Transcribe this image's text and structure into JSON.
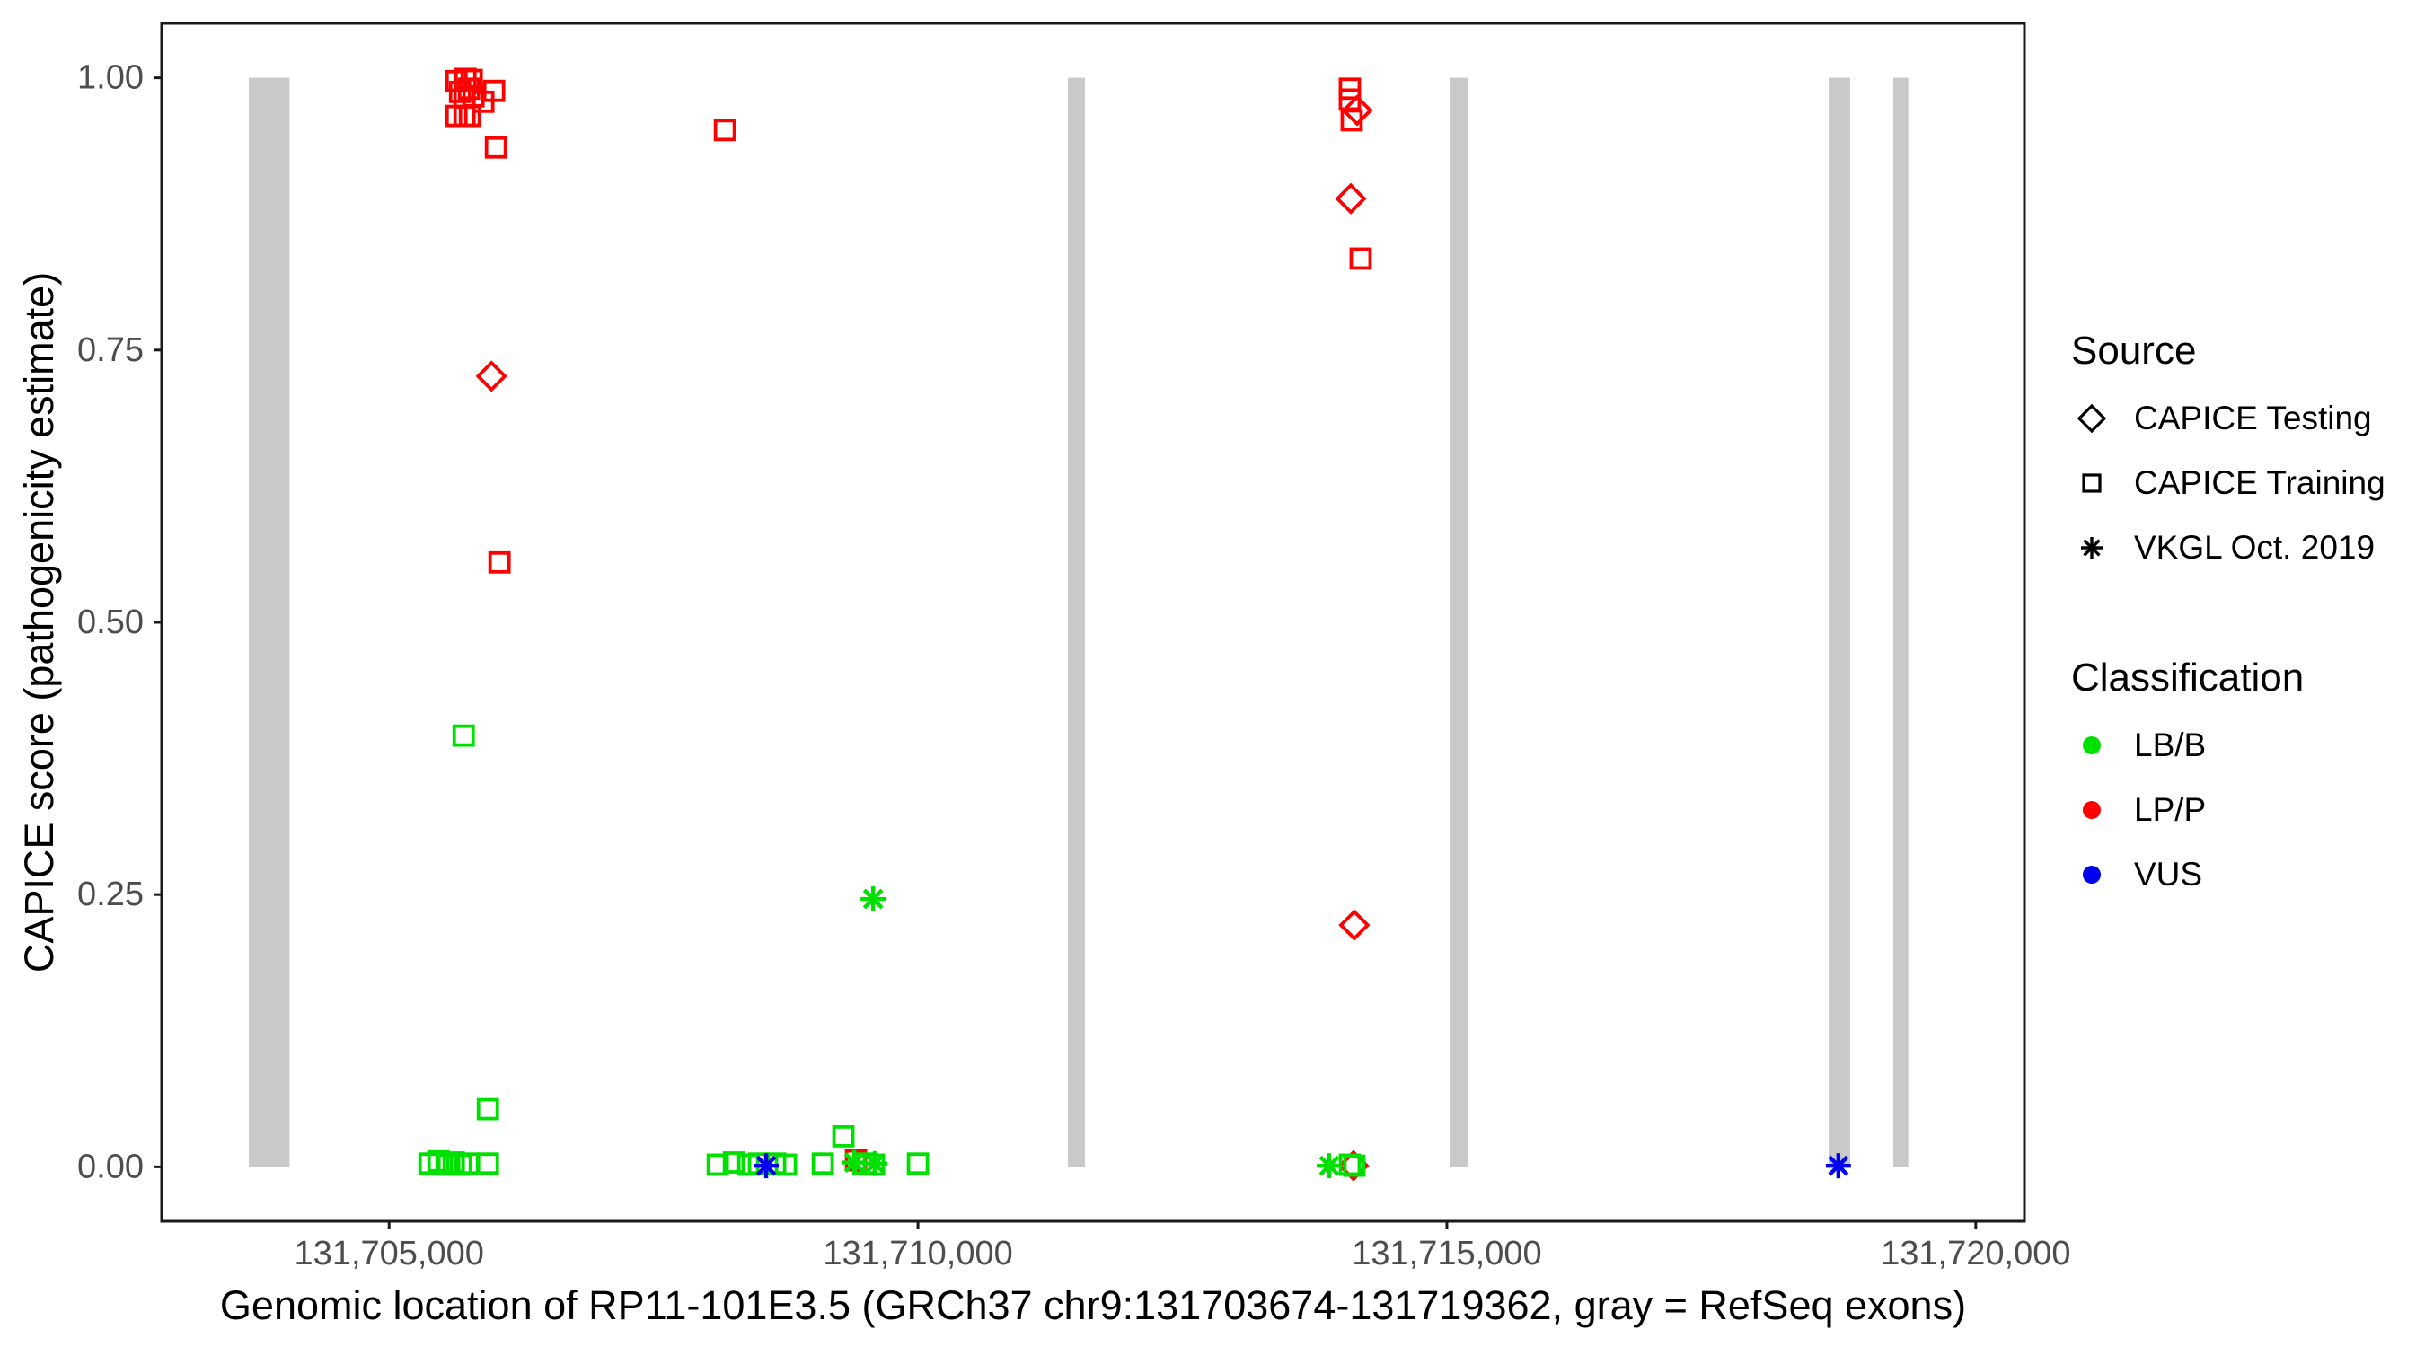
{
  "chart_data": {
    "type": "scatter",
    "title": "",
    "xlabel": "Genomic location of RP11-101E3.5 (GRCh37 chr9:131703674-131719362, gray = RefSeq exons)",
    "ylabel": "CAPICE score (pathogenicity estimate)",
    "xlim": [
      131702850,
      131720460
    ],
    "ylim": [
      -0.05,
      1.05
    ],
    "grid": false,
    "x_ticks": [
      {
        "value": 131705000,
        "label": "131,705,000"
      },
      {
        "value": 131710000,
        "label": "131,710,000"
      },
      {
        "value": 131715000,
        "label": "131,715,000"
      },
      {
        "value": 131720000,
        "label": "131,720,000"
      }
    ],
    "y_ticks": [
      {
        "value": 0.0,
        "label": "0.00"
      },
      {
        "value": 0.25,
        "label": "0.25"
      },
      {
        "value": 0.5,
        "label": "0.50"
      },
      {
        "value": 0.75,
        "label": "0.75"
      },
      {
        "value": 1.0,
        "label": "1.00"
      }
    ],
    "refseq_exons_gray": [
      [
        131703674,
        131704059
      ],
      [
        131711417,
        131711578
      ],
      [
        131715026,
        131715196
      ],
      [
        131718609,
        131718812
      ],
      [
        131719220,
        131719362
      ]
    ],
    "exon_y_span": [
      0.0,
      1.0
    ],
    "series": [
      {
        "name": "CAPICE Training / LP/P",
        "source": "CAPICE Training",
        "classification": "LP/P",
        "marker": "square",
        "color": "#FF0000",
        "points": [
          [
            131705637,
            0.997
          ],
          [
            131705722,
            0.999
          ],
          [
            131705781,
            0.998
          ],
          [
            131705671,
            0.987
          ],
          [
            131705756,
            0.99
          ],
          [
            131705713,
            0.982
          ],
          [
            131705798,
            0.983
          ],
          [
            131705993,
            0.988
          ],
          [
            131705891,
            0.978
          ],
          [
            131705637,
            0.965
          ],
          [
            131705713,
            0.965
          ],
          [
            131705764,
            0.965
          ],
          [
            131706010,
            0.936
          ],
          [
            131706044,
            0.555
          ],
          [
            131708175,
            0.952
          ],
          [
            131709414,
            0.006
          ],
          [
            131714083,
            0.99
          ],
          [
            131714083,
            0.98
          ],
          [
            131714100,
            0.961
          ],
          [
            131714185,
            0.834
          ]
        ]
      },
      {
        "name": "CAPICE Testing / LP/P",
        "source": "CAPICE Testing",
        "classification": "LP/P",
        "marker": "diamond",
        "color": "#FF0000",
        "points": [
          [
            131705968,
            0.726
          ],
          [
            131714151,
            0.97
          ],
          [
            131714092,
            0.889
          ],
          [
            131714125,
            0.222
          ],
          [
            131714117,
            0.001
          ]
        ]
      },
      {
        "name": "CAPICE Training / LB/B",
        "source": "CAPICE Training",
        "classification": "LB/B",
        "marker": "square",
        "color": "#00E000",
        "points": [
          [
            131705705,
            0.396
          ],
          [
            131705934,
            0.053
          ],
          [
            131705382,
            0.003
          ],
          [
            131705467,
            0.005
          ],
          [
            131705543,
            0.002
          ],
          [
            131705611,
            0.004
          ],
          [
            131705679,
            0.002
          ],
          [
            131705747,
            0.003
          ],
          [
            131705934,
            0.003
          ],
          [
            131708107,
            0.002
          ],
          [
            131708260,
            0.004
          ],
          [
            131708396,
            0.002
          ],
          [
            131708497,
            0.003
          ],
          [
            131708650,
            0.003
          ],
          [
            131708752,
            0.002
          ],
          [
            131709100,
            0.003
          ],
          [
            131709295,
            0.028
          ],
          [
            131709499,
            0.003
          ],
          [
            131709584,
            0.002
          ],
          [
            131710000,
            0.003
          ],
          [
            131714083,
            0.002
          ],
          [
            131714125,
            0.001
          ]
        ]
      },
      {
        "name": "VKGL Oct. 2019 / LB/B",
        "source": "VKGL Oct. 2019",
        "classification": "LB/B",
        "marker": "asterisk",
        "color": "#00E000",
        "points": [
          [
            131709576,
            0.246
          ],
          [
            131709397,
            0.004
          ],
          [
            131709592,
            0.003
          ],
          [
            131713888,
            0.001
          ]
        ]
      },
      {
        "name": "VKGL Oct. 2019 / VUS",
        "source": "VKGL Oct. 2019",
        "classification": "VUS",
        "marker": "asterisk",
        "color": "#0000EE",
        "points": [
          [
            131708565,
            0.001
          ],
          [
            131718701,
            0.001
          ]
        ]
      }
    ]
  },
  "legend": {
    "source_title": "Source",
    "source_items": [
      {
        "label": "CAPICE Testing",
        "marker": "diamond"
      },
      {
        "label": "CAPICE Training",
        "marker": "square"
      },
      {
        "label": "VKGL Oct. 2019",
        "marker": "asterisk"
      }
    ],
    "classification_title": "Classification",
    "classification_items": [
      {
        "label": "LB/B",
        "color": "#00E000"
      },
      {
        "label": "LP/P",
        "color": "#FF0000"
      },
      {
        "label": "VUS",
        "color": "#0000EE"
      }
    ]
  },
  "colors": {
    "exon_gray": "#C9C9C9",
    "axis_text": "#4D4D4D",
    "axis_line": "#1A1A1A",
    "lb_b": "#00E000",
    "lp_p": "#FF0000",
    "vus": "#0000EE",
    "background": "#FFFFFF"
  }
}
